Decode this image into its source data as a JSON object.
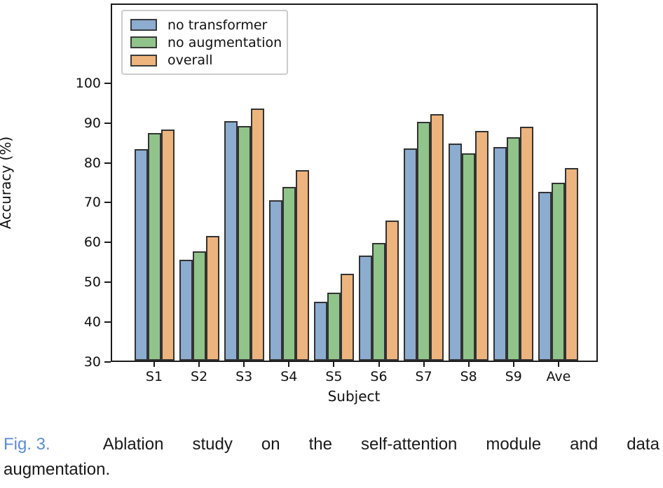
{
  "chart_data": {
    "type": "bar",
    "title": "",
    "xlabel": "Subject",
    "ylabel": "Accuracy (%)",
    "categories": [
      "S1",
      "S2",
      "S3",
      "S4",
      "S5",
      "S6",
      "S7",
      "S8",
      "S9",
      "Ave"
    ],
    "series": [
      {
        "name": "no transformer",
        "color": "#8CACD0",
        "values": [
          83.5,
          55.6,
          90.6,
          70.6,
          44.8,
          56.5,
          83.7,
          85.0,
          84.1,
          72.7
        ]
      },
      {
        "name": "no augmentation",
        "color": "#90C48A",
        "values": [
          87.5,
          57.7,
          89.4,
          74.0,
          47.2,
          59.8,
          90.4,
          82.5,
          86.5,
          75.0
        ]
      },
      {
        "name": "overall",
        "color": "#EDB47D",
        "values": [
          88.4,
          61.6,
          93.7,
          78.2,
          52.0,
          65.4,
          92.4,
          88.1,
          89.1,
          78.8
        ]
      }
    ],
    "ylim": [
      30,
      120
    ],
    "yticks": [
      30,
      40,
      50,
      60,
      70,
      80,
      90,
      100
    ],
    "bar_edge_color": "#333333",
    "axis_color": "#1a1a1a",
    "legend_position": "upper left",
    "grid": false
  },
  "caption": {
    "fig_label": "Fig. 3.",
    "line1": "Ablation study on the self-attention module and data",
    "line2": "augmentation.",
    "accent_color": "#5C8DD6"
  }
}
